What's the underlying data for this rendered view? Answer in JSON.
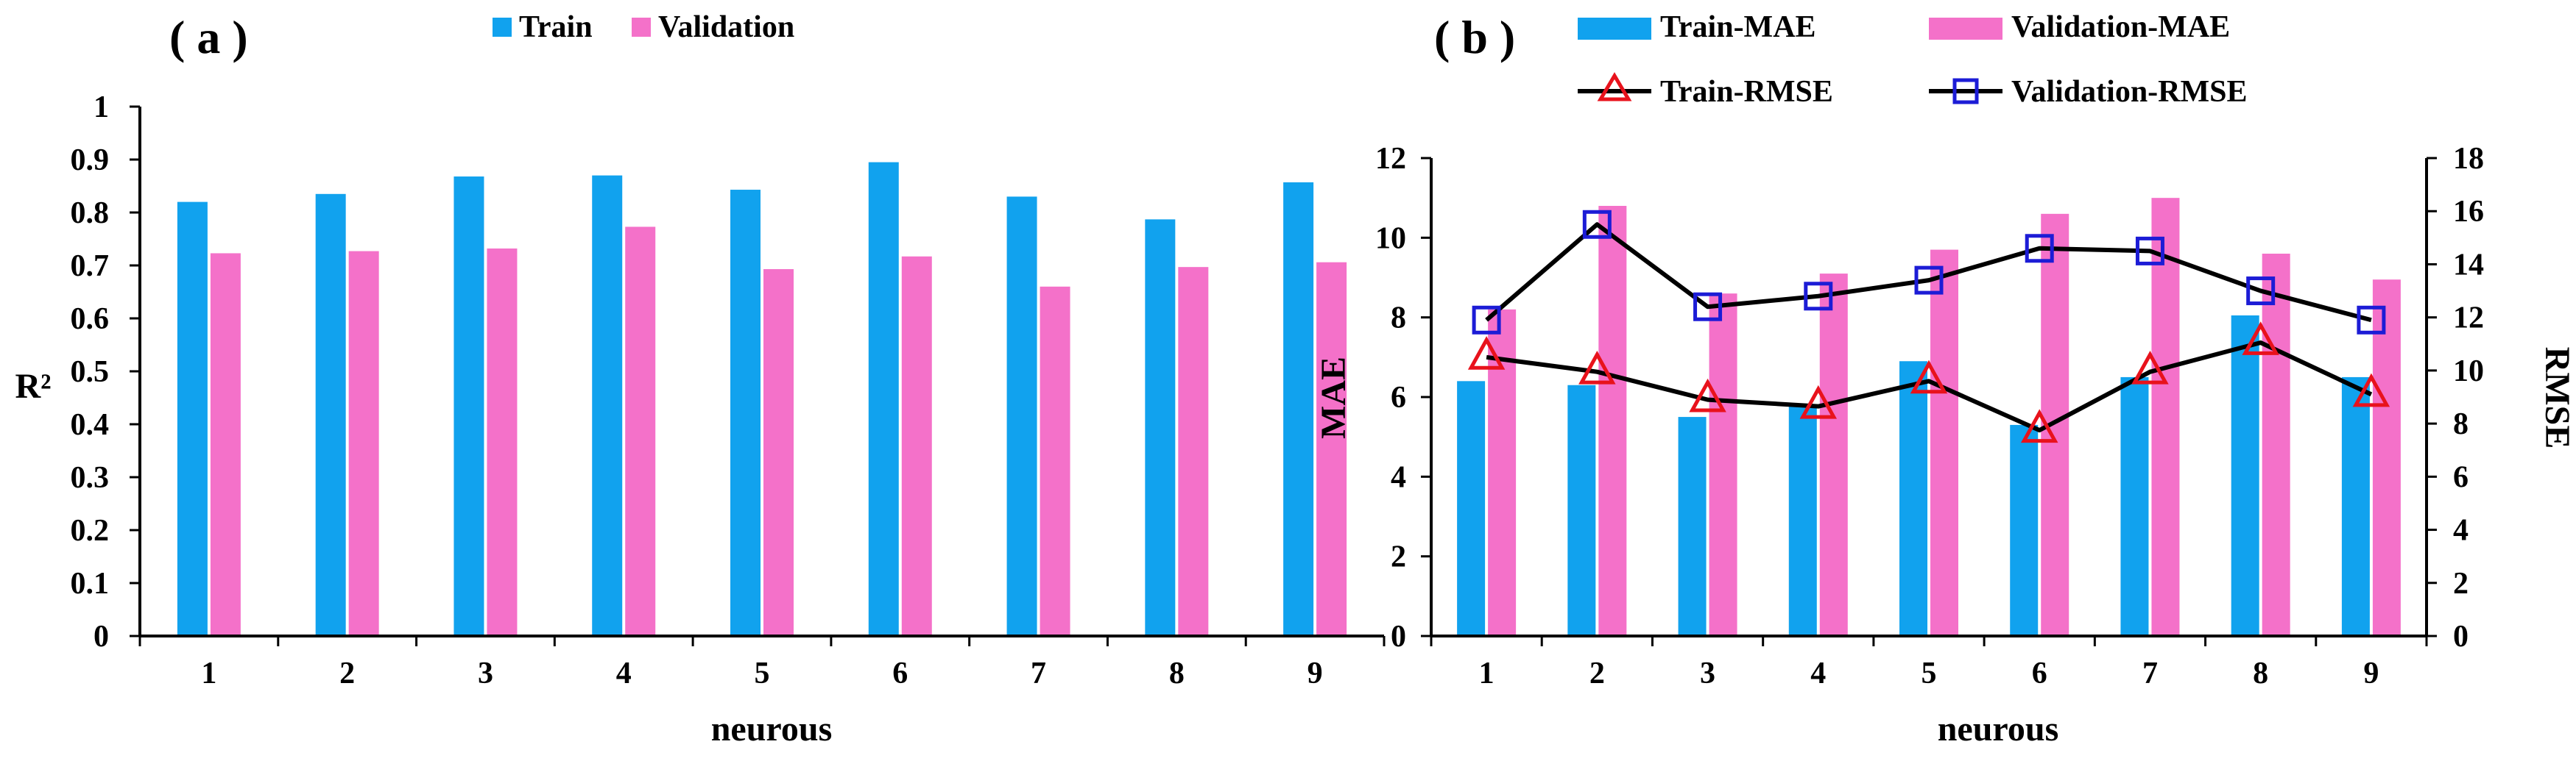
{
  "colors": {
    "train": "#11a2ee",
    "validation": "#f471c9",
    "train_rmse_marker": "#e8121c",
    "validation_rmse_marker": "#1c1cd6",
    "line": "#000000"
  },
  "chart_data": [
    {
      "type": "bar",
      "panel_label": "( a )",
      "title": "",
      "xlabel": "neurous",
      "ylabel": "R²",
      "categories": [
        "1",
        "2",
        "3",
        "4",
        "5",
        "6",
        "7",
        "8",
        "9"
      ],
      "ylim": [
        0,
        1
      ],
      "yticks": [
        "0",
        "0.1",
        "0.2",
        "0.3",
        "0.4",
        "0.5",
        "0.6",
        "0.7",
        "0.8",
        "0.9",
        "1"
      ],
      "legend_position": "top-center",
      "series": [
        {
          "name": "Train",
          "color_key": "train",
          "values": [
            0.82,
            0.835,
            0.868,
            0.87,
            0.843,
            0.895,
            0.83,
            0.787,
            0.857
          ]
        },
        {
          "name": "Validation",
          "color_key": "validation",
          "values": [
            0.723,
            0.727,
            0.732,
            0.773,
            0.693,
            0.717,
            0.66,
            0.697,
            0.706
          ]
        }
      ]
    },
    {
      "type": "bar+line",
      "panel_label": "( b )",
      "title": "",
      "xlabel": "neurous",
      "ylabel": "MAE",
      "y2label": "RMSE",
      "categories": [
        "1",
        "2",
        "3",
        "4",
        "5",
        "6",
        "7",
        "8",
        "9"
      ],
      "ylim": [
        0,
        12
      ],
      "yticks": [
        "0",
        "2",
        "4",
        "6",
        "8",
        "10",
        "12"
      ],
      "y2lim": [
        0,
        18
      ],
      "y2ticks": [
        "0",
        "2",
        "4",
        "6",
        "8",
        "10",
        "12",
        "14",
        "16",
        "18"
      ],
      "legend_position": "top",
      "series": [
        {
          "name": "Train-MAE",
          "kind": "bar",
          "axis": "left",
          "color_key": "train",
          "values": [
            6.4,
            6.3,
            5.5,
            5.8,
            6.9,
            5.3,
            6.5,
            8.05,
            6.5
          ]
        },
        {
          "name": "Validation-MAE",
          "kind": "bar",
          "axis": "left",
          "color_key": "validation",
          "values": [
            8.2,
            10.8,
            8.6,
            9.1,
            9.7,
            10.6,
            11.0,
            9.6,
            8.95
          ]
        },
        {
          "name": "Train-RMSE",
          "kind": "line",
          "axis": "right",
          "marker": "triangle",
          "color_key": "train_rmse_marker",
          "values": [
            10.5,
            9.95,
            8.9,
            8.65,
            9.6,
            7.75,
            9.95,
            11.05,
            9.1
          ]
        },
        {
          "name": "Validation-RMSE",
          "kind": "line",
          "axis": "right",
          "marker": "square",
          "color_key": "validation_rmse_marker",
          "values": [
            11.9,
            15.5,
            12.4,
            12.8,
            13.4,
            14.6,
            14.5,
            13.0,
            11.9
          ]
        }
      ]
    }
  ]
}
